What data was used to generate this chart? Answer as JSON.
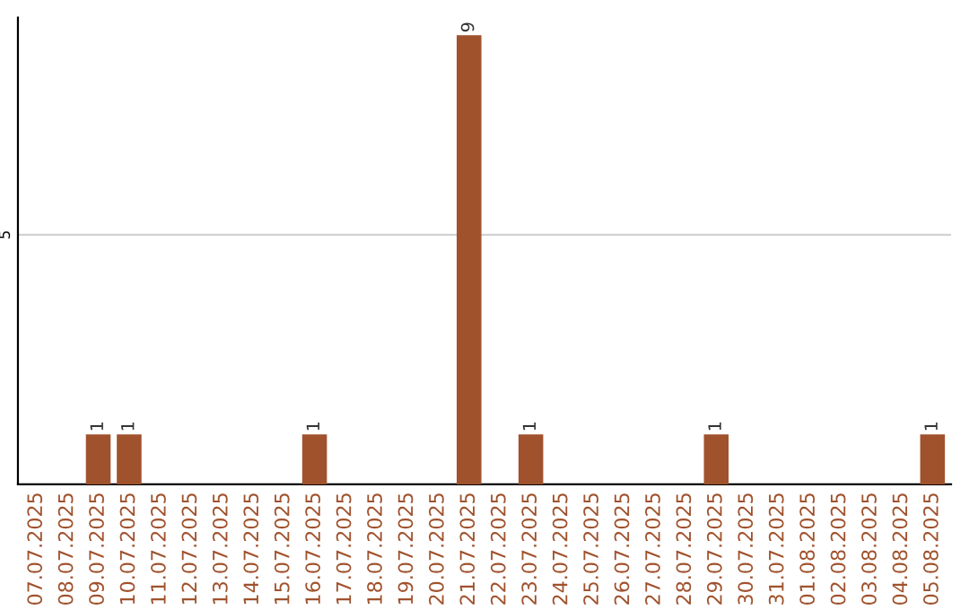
{
  "chart_data": {
    "type": "bar",
    "categories": [
      "07.07.2025",
      "08.07.2025",
      "09.07.2025",
      "10.07.2025",
      "11.07.2025",
      "12.07.2025",
      "13.07.2025",
      "14.07.2025",
      "15.07.2025",
      "16.07.2025",
      "17.07.2025",
      "18.07.2025",
      "19.07.2025",
      "20.07.2025",
      "21.07.2025",
      "22.07.2025",
      "23.07.2025",
      "24.07.2025",
      "25.07.2025",
      "26.07.2025",
      "27.07.2025",
      "28.07.2025",
      "29.07.2025",
      "30.07.2025",
      "31.07.2025",
      "01.08.2025",
      "02.08.2025",
      "03.08.2025",
      "04.08.2025",
      "05.08.2025"
    ],
    "values": [
      0,
      0,
      1,
      1,
      0,
      0,
      0,
      0,
      0,
      1,
      0,
      0,
      0,
      0,
      9,
      0,
      1,
      0,
      0,
      0,
      0,
      0,
      1,
      0,
      0,
      0,
      0,
      0,
      0,
      1
    ],
    "color": "#a0522d",
    "value_labels": [
      null,
      null,
      "1",
      "1",
      null,
      null,
      null,
      null,
      null,
      "1",
      null,
      null,
      null,
      null,
      "9",
      null,
      "1",
      null,
      null,
      null,
      null,
      null,
      "1",
      null,
      null,
      null,
      null,
      null,
      null,
      "1"
    ],
    "ylim": [
      0,
      9.35
    ],
    "yticks": [
      5
    ],
    "grid": "y"
  }
}
